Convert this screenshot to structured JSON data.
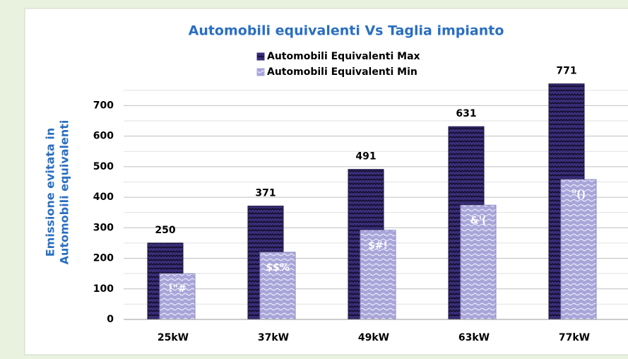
{
  "chart_data": {
    "type": "bar",
    "title": "Automobili equivalenti Vs Taglia impianto",
    "ylabel": [
      "Emissione evitata in",
      "Automobili equivalenti"
    ],
    "categories": [
      "25kW",
      "37kW",
      "49kW",
      "63kW",
      "77kW"
    ],
    "series": [
      {
        "name": "Automobili Equivalenti Max",
        "color": "#3a2d78",
        "values": [
          250,
          371,
          491,
          631,
          771
        ]
      },
      {
        "name": "Automobili Equivalenti Min",
        "color": "#a8a5d9",
        "values": [
          150,
          220,
          292,
          374,
          458
        ],
        "value_labels": [
          "!\"#",
          "$$%",
          "$#!",
          "&'(",
          "\"()"
        ]
      }
    ],
    "ylim": [
      0,
      750
    ],
    "yticks": [
      0,
      100,
      200,
      300,
      400,
      500,
      600,
      700
    ],
    "minor_yticks": [
      50,
      150,
      250,
      350,
      450,
      550,
      650,
      750
    ],
    "grid": true
  }
}
